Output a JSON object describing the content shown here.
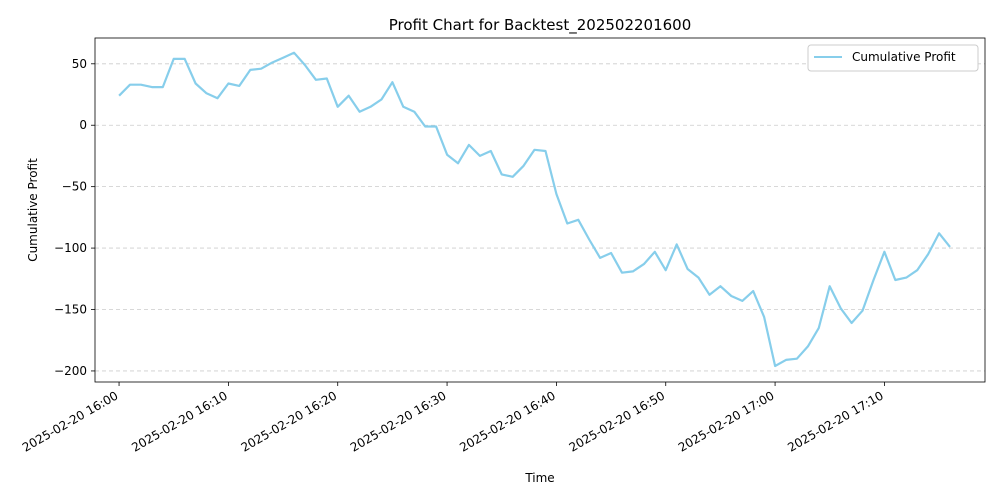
{
  "chart_data": {
    "type": "line",
    "title": "Profit Chart for Backtest_202502201600",
    "xlabel": "Time",
    "ylabel": "Cumulative Profit",
    "xlim": [
      "2025-02-20 15:57:48",
      "2025-02-20 17:19:12"
    ],
    "ylim": [
      -209,
      71
    ],
    "grid": {
      "x": false,
      "y": true
    },
    "legend": {
      "position": "top-right"
    },
    "colors": {
      "line": "#87ceeb",
      "grid": "#cccccc",
      "axis": "#000000"
    },
    "x_ticks": [
      "2025-02-20 16:00",
      "2025-02-20 16:10",
      "2025-02-20 16:20",
      "2025-02-20 16:30",
      "2025-02-20 16:40",
      "2025-02-20 16:50",
      "2025-02-20 17:00",
      "2025-02-20 17:10"
    ],
    "y_ticks": [
      50,
      0,
      -50,
      -100,
      -150,
      -200
    ],
    "y_tick_labels": [
      "50",
      "0",
      "−50",
      "−100",
      "−150",
      "−200"
    ],
    "x": [
      "2025-02-20 16:00",
      "2025-02-20 16:01",
      "2025-02-20 16:02",
      "2025-02-20 16:03",
      "2025-02-20 16:04",
      "2025-02-20 16:05",
      "2025-02-20 16:06",
      "2025-02-20 16:07",
      "2025-02-20 16:08",
      "2025-02-20 16:09",
      "2025-02-20 16:10",
      "2025-02-20 16:11",
      "2025-02-20 16:12",
      "2025-02-20 16:13",
      "2025-02-20 16:14",
      "2025-02-20 16:15",
      "2025-02-20 16:16",
      "2025-02-20 16:17",
      "2025-02-20 16:18",
      "2025-02-20 16:19",
      "2025-02-20 16:20",
      "2025-02-20 16:21",
      "2025-02-20 16:22",
      "2025-02-20 16:23",
      "2025-02-20 16:24",
      "2025-02-20 16:25",
      "2025-02-20 16:26",
      "2025-02-20 16:27",
      "2025-02-20 16:28",
      "2025-02-20 16:29",
      "2025-02-20 16:30",
      "2025-02-20 16:31",
      "2025-02-20 16:32",
      "2025-02-20 16:33",
      "2025-02-20 16:34",
      "2025-02-20 16:35",
      "2025-02-20 16:36",
      "2025-02-20 16:37",
      "2025-02-20 16:38",
      "2025-02-20 16:39",
      "2025-02-20 16:40",
      "2025-02-20 16:41",
      "2025-02-20 16:42",
      "2025-02-20 16:43",
      "2025-02-20 16:44",
      "2025-02-20 16:45",
      "2025-02-20 16:46",
      "2025-02-20 16:47",
      "2025-02-20 16:48",
      "2025-02-20 16:49",
      "2025-02-20 16:50",
      "2025-02-20 16:51",
      "2025-02-20 16:52",
      "2025-02-20 16:53",
      "2025-02-20 16:54",
      "2025-02-20 16:55",
      "2025-02-20 16:56",
      "2025-02-20 16:57",
      "2025-02-20 16:58",
      "2025-02-20 16:59",
      "2025-02-20 17:00",
      "2025-02-20 17:01",
      "2025-02-20 17:02",
      "2025-02-20 17:03",
      "2025-02-20 17:04",
      "2025-02-20 17:05",
      "2025-02-20 17:06",
      "2025-02-20 17:07",
      "2025-02-20 17:08",
      "2025-02-20 17:09",
      "2025-02-20 17:10",
      "2025-02-20 17:11",
      "2025-02-20 17:12",
      "2025-02-20 17:13",
      "2025-02-20 17:14",
      "2025-02-20 17:15",
      "2025-02-20 17:16"
    ],
    "series": [
      {
        "name": "Cumulative Profit",
        "values": [
          24,
          33,
          33,
          31,
          31,
          54,
          54,
          34,
          26,
          22,
          34,
          32,
          45,
          46,
          51,
          55,
          59,
          49,
          37,
          38,
          15,
          24,
          11,
          15,
          21,
          35,
          15,
          11,
          -1,
          -1,
          -24,
          -31,
          -16,
          -25,
          -21,
          -40,
          -42,
          -33,
          -20,
          -21,
          -56,
          -80,
          -77,
          -93,
          -108,
          -104,
          -120,
          -119,
          -113,
          -103,
          -118,
          -97,
          -117,
          -124,
          -138,
          -131,
          -139,
          -143,
          -135,
          -156,
          -196,
          -191,
          -190,
          -180,
          -165,
          -131,
          -149,
          -161,
          -151,
          -126,
          -103,
          -126,
          -124,
          -118,
          -105,
          -88,
          -99
        ]
      }
    ]
  }
}
